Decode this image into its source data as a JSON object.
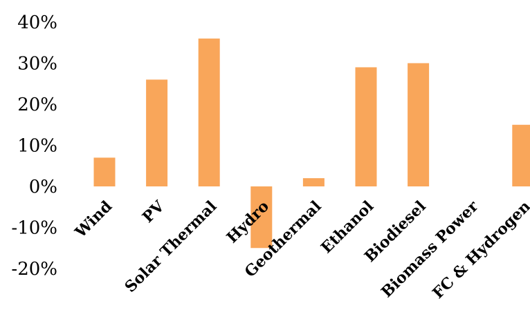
{
  "chart_data": {
    "type": "bar",
    "title": "",
    "xlabel": "",
    "ylabel": "",
    "categories": [
      "Wind",
      "PV",
      "Solar Thermal",
      "Hydro",
      "Geothermal",
      "Ethanol",
      "Biodiesel",
      "Biomass Power",
      "FC & Hydrogen"
    ],
    "values": [
      7,
      26,
      36,
      -15,
      2,
      29,
      30,
      0,
      15
    ],
    "ylim": [
      -20,
      40
    ],
    "yticks": [
      40,
      30,
      20,
      10,
      0,
      -10,
      -20
    ],
    "ytick_labels": [
      "40%",
      "30%",
      "20%",
      "10%",
      "0%",
      "-10%",
      "-20%"
    ],
    "bar_color": "#f9a65a",
    "grid": false,
    "legend": "none"
  }
}
